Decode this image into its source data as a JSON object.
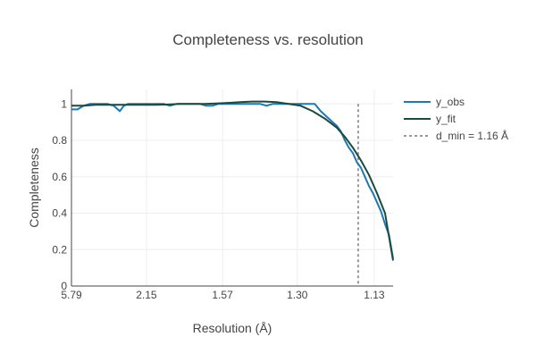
{
  "chart_data": {
    "type": "line",
    "title": "Completeness vs. resolution",
    "xlabel": "Resolution (Å)",
    "ylabel": "Completeness",
    "x_axis_note": "x plotted as 1/d² (Å⁻²); tick labels show d in Å",
    "xlim_inv_d2": [
      0.02983,
      0.83
    ],
    "ylim": [
      0,
      1.08
    ],
    "xticks": [
      {
        "label": "5.79",
        "inv_d2": 0.02983
      },
      {
        "label": "2.15",
        "inv_d2": 0.21633
      },
      {
        "label": "1.57",
        "inv_d2": 0.4057
      },
      {
        "label": "1.30",
        "inv_d2": 0.59172
      },
      {
        "label": "1.13",
        "inv_d2": 0.78315
      }
    ],
    "yticks": [
      0,
      0.2,
      0.4,
      0.6,
      0.8,
      1
    ],
    "grid": true,
    "legend_position": "top-right",
    "colors": {
      "y_obs": "#1f77b4",
      "y_fit": "#1b4a3e",
      "d_min": "#999999"
    },
    "series": [
      {
        "name": "y_obs",
        "x": [
          0.03,
          0.045,
          0.06,
          0.075,
          0.09,
          0.105,
          0.12,
          0.135,
          0.15,
          0.16,
          0.17,
          0.185,
          0.2,
          0.215,
          0.23,
          0.245,
          0.26,
          0.275,
          0.29,
          0.305,
          0.32,
          0.335,
          0.35,
          0.365,
          0.38,
          0.395,
          0.41,
          0.425,
          0.44,
          0.455,
          0.47,
          0.485,
          0.5,
          0.515,
          0.53,
          0.545,
          0.56,
          0.575,
          0.59,
          0.605,
          0.62,
          0.635,
          0.65,
          0.665,
          0.68,
          0.69,
          0.7,
          0.71,
          0.72,
          0.73,
          0.74,
          0.75,
          0.76,
          0.77,
          0.78,
          0.79,
          0.8,
          0.81,
          0.82,
          0.83
        ],
        "y": [
          0.97,
          0.97,
          0.99,
          1.0,
          1.0,
          1.0,
          1.0,
          0.99,
          0.96,
          0.99,
          1.0,
          1.0,
          1.0,
          1.0,
          1.0,
          1.0,
          1.0,
          0.99,
          1.0,
          1.0,
          1.0,
          1.0,
          1.0,
          0.99,
          0.99,
          1.0,
          1.0,
          1.0,
          1.0,
          1.0,
          1.0,
          1.0,
          1.0,
          0.99,
          1.0,
          1.0,
          1.0,
          1.0,
          1.0,
          1.0,
          1.0,
          1.0,
          0.96,
          0.93,
          0.9,
          0.88,
          0.85,
          0.8,
          0.76,
          0.73,
          0.68,
          0.65,
          0.6,
          0.55,
          0.51,
          0.46,
          0.41,
          0.34,
          0.28,
          0.15
        ]
      },
      {
        "name": "y_fit",
        "x": [
          0.03,
          0.06,
          0.09,
          0.12,
          0.15,
          0.18,
          0.21,
          0.24,
          0.27,
          0.3,
          0.33,
          0.36,
          0.39,
          0.42,
          0.45,
          0.48,
          0.51,
          0.54,
          0.57,
          0.6,
          0.63,
          0.66,
          0.69,
          0.71,
          0.73,
          0.75,
          0.77,
          0.79,
          0.81,
          0.83
        ],
        "y": [
          0.99,
          0.99,
          0.995,
          0.995,
          0.995,
          0.995,
          0.995,
          0.995,
          0.997,
          1.0,
          1.0,
          1.0,
          1.003,
          1.006,
          1.01,
          1.013,
          1.013,
          1.01,
          1.0,
          0.99,
          0.96,
          0.92,
          0.87,
          0.82,
          0.76,
          0.69,
          0.61,
          0.51,
          0.4,
          0.14
        ]
      }
    ],
    "reference_line": {
      "name": "d_min = 1.16 Å",
      "inv_d2": 0.7432
    }
  }
}
